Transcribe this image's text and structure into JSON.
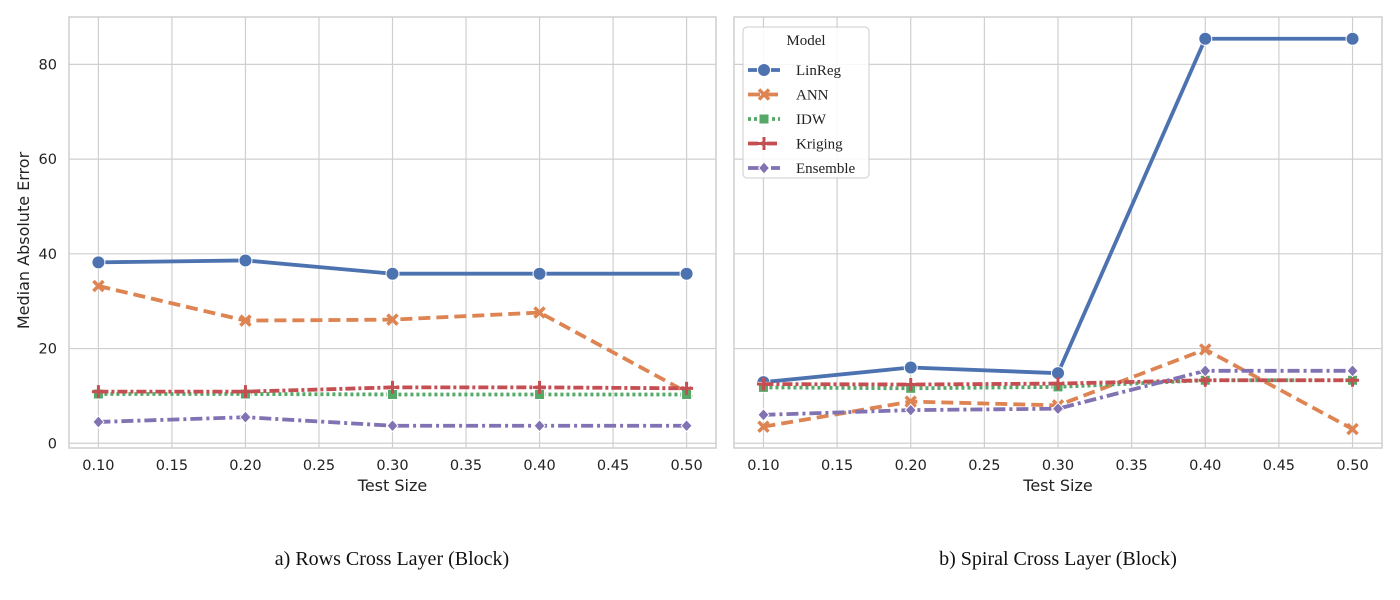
{
  "chart_data": [
    {
      "type": "line",
      "xlabel": "Test Size",
      "ylabel": "Median Absolute Error",
      "caption": "a) Rows Cross Layer (Block)",
      "x": [
        0.1,
        0.2,
        0.3,
        0.4,
        0.5
      ],
      "xticks": [
        "0.10",
        "0.15",
        "0.20",
        "0.25",
        "0.30",
        "0.35",
        "0.40",
        "0.45",
        "0.50"
      ],
      "yticks": [
        "0",
        "20",
        "40",
        "60",
        "80"
      ],
      "xlim": [
        0.08,
        0.52
      ],
      "ylim": [
        -1,
        90
      ],
      "grid": true,
      "legend": null,
      "series": [
        {
          "name": "LinReg",
          "values": [
            38.2,
            38.6,
            35.8,
            35.8,
            35.8
          ]
        },
        {
          "name": "ANN",
          "values": [
            33.2,
            25.9,
            26.1,
            27.6,
            10.8
          ]
        },
        {
          "name": "IDW",
          "values": [
            10.4,
            10.4,
            10.3,
            10.3,
            10.3
          ]
        },
        {
          "name": "Kriging",
          "values": [
            10.9,
            10.9,
            11.8,
            11.8,
            11.6
          ]
        },
        {
          "name": "Ensemble",
          "values": [
            4.5,
            5.5,
            3.7,
            3.7,
            3.7
          ]
        }
      ]
    },
    {
      "type": "line",
      "xlabel": "Test Size",
      "ylabel": "",
      "caption": "b) Spiral Cross Layer (Block)",
      "x": [
        0.1,
        0.2,
        0.3,
        0.4,
        0.5
      ],
      "xticks": [
        "0.10",
        "0.15",
        "0.20",
        "0.25",
        "0.30",
        "0.35",
        "0.40",
        "0.45",
        "0.50"
      ],
      "yticks": [],
      "xlim": [
        0.08,
        0.52
      ],
      "ylim": [
        -1,
        90
      ],
      "grid": true,
      "legend": {
        "title": "Model",
        "placement": "top-left"
      },
      "series": [
        {
          "name": "LinReg",
          "values": [
            12.9,
            16.0,
            14.8,
            85.4,
            85.4
          ]
        },
        {
          "name": "ANN",
          "values": [
            3.5,
            8.8,
            8.0,
            19.8,
            3.0
          ]
        },
        {
          "name": "IDW",
          "values": [
            11.8,
            11.6,
            11.9,
            13.3,
            13.3
          ]
        },
        {
          "name": "Kriging",
          "values": [
            12.5,
            12.4,
            12.6,
            13.3,
            13.3
          ]
        },
        {
          "name": "Ensemble",
          "values": [
            6.0,
            7.0,
            7.3,
            15.3,
            15.3
          ]
        }
      ]
    }
  ],
  "styles": [
    {
      "name": "LinReg",
      "color": "#4c72b0",
      "dash": "",
      "marker": "circle"
    },
    {
      "name": "ANN",
      "color": "#dd8452",
      "dash": "12,6",
      "marker": "x"
    },
    {
      "name": "IDW",
      "color": "#55a868",
      "dash": "3,3",
      "marker": "square"
    },
    {
      "name": "Kriging",
      "color": "#c44e52",
      "dash": "10,3,3,3",
      "marker": "plus"
    },
    {
      "name": "Ensemble",
      "color": "#8172b3",
      "dash": "12,4,3,4",
      "marker": "diamond"
    }
  ]
}
